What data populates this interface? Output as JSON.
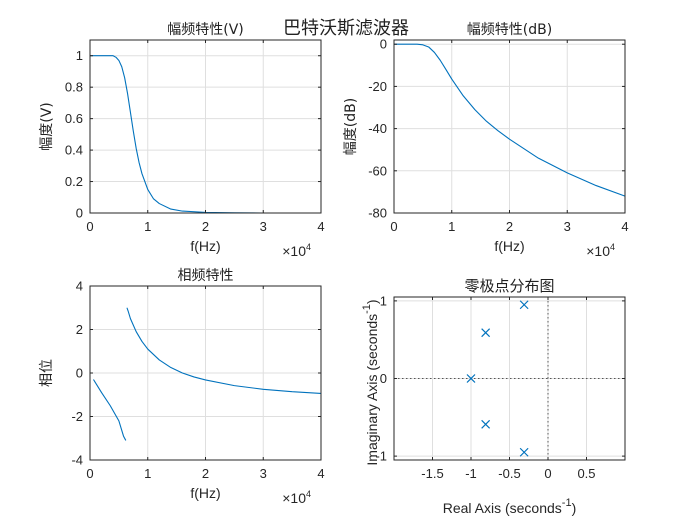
{
  "figure": {
    "suptitle": "巴特沃斯滤波器"
  },
  "chart_data": [
    {
      "type": "line",
      "title": "幅频特性(V)",
      "xlabel": "f(Hz)",
      "ylabel": "幅度(V)",
      "x_exponent_label": "×10",
      "x_exponent": "4",
      "xlim": [
        0,
        4
      ],
      "ylim": [
        0,
        1.1
      ],
      "xticks": [
        0,
        1,
        2,
        3,
        4
      ],
      "yticks": [
        0,
        0.2,
        0.4,
        0.6,
        0.8,
        1
      ],
      "xticklabels": [
        "0",
        "1",
        "2",
        "3",
        "4"
      ],
      "yticklabels": [
        "0",
        "0.2",
        "0.4",
        "0.6",
        "0.8",
        "1"
      ],
      "grid": true,
      "color": "#0072BD",
      "series": [
        {
          "x": [
            0.0,
            0.3,
            0.4,
            0.45,
            0.5,
            0.55,
            0.6,
            0.65,
            0.7,
            0.75,
            0.8,
            0.85,
            0.9,
            1.0,
            1.1,
            1.2,
            1.4,
            1.6,
            2.0,
            2.5,
            3.0,
            4.0
          ],
          "y": [
            1.0,
            1.0,
            1.0,
            0.99,
            0.97,
            0.93,
            0.86,
            0.76,
            0.64,
            0.52,
            0.41,
            0.32,
            0.25,
            0.15,
            0.09,
            0.06,
            0.025,
            0.012,
            0.004,
            0.001,
            0.0,
            0.0
          ]
        }
      ]
    },
    {
      "type": "line",
      "title": "幅频特性(dB)",
      "xlabel": "f(Hz)",
      "ylabel": "幅度(dB)",
      "x_exponent_label": "×10",
      "x_exponent": "4",
      "xlim": [
        0,
        4
      ],
      "ylim": [
        -80,
        2
      ],
      "xticks": [
        0,
        1,
        2,
        3,
        4
      ],
      "yticks": [
        -80,
        -60,
        -40,
        -20,
        0
      ],
      "xticklabels": [
        "0",
        "1",
        "2",
        "3",
        "4"
      ],
      "yticklabels": [
        "-80",
        "-60",
        "-40",
        "-20",
        "0"
      ],
      "grid": true,
      "color": "#0072BD",
      "series": [
        {
          "x": [
            0.0,
            0.4,
            0.5,
            0.6,
            0.7,
            0.8,
            0.9,
            1.0,
            1.2,
            1.4,
            1.6,
            1.8,
            2.0,
            2.5,
            3.0,
            3.5,
            4.0
          ],
          "y": [
            0,
            0,
            -0.3,
            -1.3,
            -3.9,
            -7.6,
            -12,
            -16.5,
            -24.5,
            -31,
            -36.5,
            -41,
            -45,
            -54,
            -61,
            -67,
            -72
          ]
        }
      ]
    },
    {
      "type": "line",
      "title": "相频特性",
      "xlabel": "f(Hz)",
      "ylabel": "相位",
      "x_exponent_label": "×10",
      "x_exponent": "4",
      "xlim": [
        0,
        4
      ],
      "ylim": [
        -4,
        4
      ],
      "xticks": [
        0,
        1,
        2,
        3,
        4
      ],
      "yticks": [
        -4,
        -2,
        0,
        2,
        4
      ],
      "xticklabels": [
        "0",
        "1",
        "2",
        "3",
        "4"
      ],
      "yticklabels": [
        "-4",
        "-2",
        "0",
        "2",
        "4"
      ],
      "grid": true,
      "color": "#0072BD",
      "series": [
        {
          "x": [
            0.06,
            0.2,
            0.35,
            0.5,
            0.58,
            0.62,
            0.63,
            0.64,
            0.66,
            0.7,
            0.8,
            0.9,
            1.0,
            1.2,
            1.4,
            1.6,
            1.8,
            2.0,
            2.5,
            3.0,
            3.5,
            4.0
          ],
          "y": [
            -0.3,
            -0.9,
            -1.5,
            -2.2,
            -2.9,
            -3.1,
            null,
            3.0,
            2.85,
            2.5,
            1.9,
            1.45,
            1.1,
            0.6,
            0.25,
            0.0,
            -0.18,
            -0.32,
            -0.58,
            -0.75,
            -0.86,
            -0.94
          ]
        }
      ]
    },
    {
      "type": "scatter",
      "title": "零极点分布图",
      "xlabel": "Real Axis (seconds",
      "xlabel_sup": "-1",
      "xlabel_end": ")",
      "ylabel": "Imaginary Axis (seconds",
      "ylabel_sup": "-1",
      "ylabel_end": ")",
      "xlim": [
        -2,
        1
      ],
      "ylim": [
        -1.05,
        1.05
      ],
      "xticks": [
        -1.5,
        -1,
        -0.5,
        0,
        0.5
      ],
      "yticks": [
        -1,
        0,
        1
      ],
      "xticklabels": [
        "-1.5",
        "-1",
        "-0.5",
        "0",
        "0.5"
      ],
      "yticklabels": [
        "-1",
        "0",
        "1"
      ],
      "grid": true,
      "color": "#0072BD",
      "poles": [
        {
          "re": -0.31,
          "im": 0.95
        },
        {
          "re": -0.81,
          "im": 0.59
        },
        {
          "re": -1.0,
          "im": 0.0
        },
        {
          "re": -0.81,
          "im": -0.59
        },
        {
          "re": -0.31,
          "im": -0.95
        }
      ]
    }
  ]
}
